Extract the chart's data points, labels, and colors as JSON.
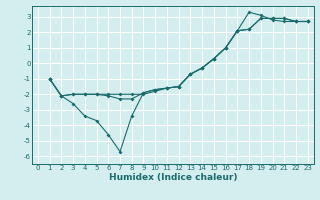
{
  "xlabel": "Humidex (Indice chaleur)",
  "ylabel": "",
  "background_color": "#d4eef0",
  "grid_color": "#ffffff",
  "line_color": "#1a6b6b",
  "xlim": [
    -0.5,
    23.5
  ],
  "ylim": [
    -6.5,
    3.7
  ],
  "yticks": [
    -6,
    -5,
    -4,
    -3,
    -2,
    -1,
    0,
    1,
    2,
    3
  ],
  "xticks": [
    0,
    1,
    2,
    3,
    4,
    5,
    6,
    7,
    8,
    9,
    10,
    11,
    12,
    13,
    14,
    15,
    16,
    17,
    18,
    19,
    20,
    21,
    22,
    23
  ],
  "line1_x": [
    1,
    2,
    3,
    4,
    5,
    6,
    7,
    8,
    9,
    10,
    11,
    12,
    13,
    14,
    15,
    16,
    17,
    18,
    19,
    20,
    21,
    22,
    23
  ],
  "line1_y": [
    -1,
    -2.1,
    -2.6,
    -3.4,
    -3.7,
    -4.6,
    -5.7,
    -3.4,
    -1.9,
    -1.7,
    -1.6,
    -1.5,
    -0.7,
    -0.3,
    0.3,
    1.0,
    2.1,
    3.3,
    3.1,
    2.8,
    2.7,
    2.7,
    2.7
  ],
  "line2_x": [
    1,
    2,
    3,
    4,
    5,
    6,
    7,
    8,
    9,
    10,
    11,
    12,
    13,
    14,
    15,
    16,
    17,
    18,
    19,
    20,
    21,
    22,
    23
  ],
  "line2_y": [
    -1,
    -2.1,
    -2.0,
    -2.0,
    -2.0,
    -2.0,
    -2.0,
    -2.0,
    -2.0,
    -1.8,
    -1.6,
    -1.5,
    -0.7,
    -0.3,
    0.3,
    1.0,
    2.1,
    2.2,
    2.9,
    2.9,
    2.9,
    2.7,
    2.7
  ],
  "line3_x": [
    1,
    2,
    3,
    4,
    5,
    6,
    7,
    8,
    9,
    10,
    11,
    12,
    13,
    14,
    15,
    16,
    17,
    18,
    19,
    20,
    21,
    22,
    23
  ],
  "line3_y": [
    -1,
    -2.1,
    -2.0,
    -2.0,
    -2.0,
    -2.1,
    -2.3,
    -2.3,
    -1.9,
    -1.7,
    -1.6,
    -1.5,
    -0.7,
    -0.3,
    0.3,
    1.0,
    2.1,
    2.2,
    2.9,
    2.9,
    2.9,
    2.7,
    2.7
  ],
  "tick_fontsize": 5.0,
  "xlabel_fontsize": 6.5
}
